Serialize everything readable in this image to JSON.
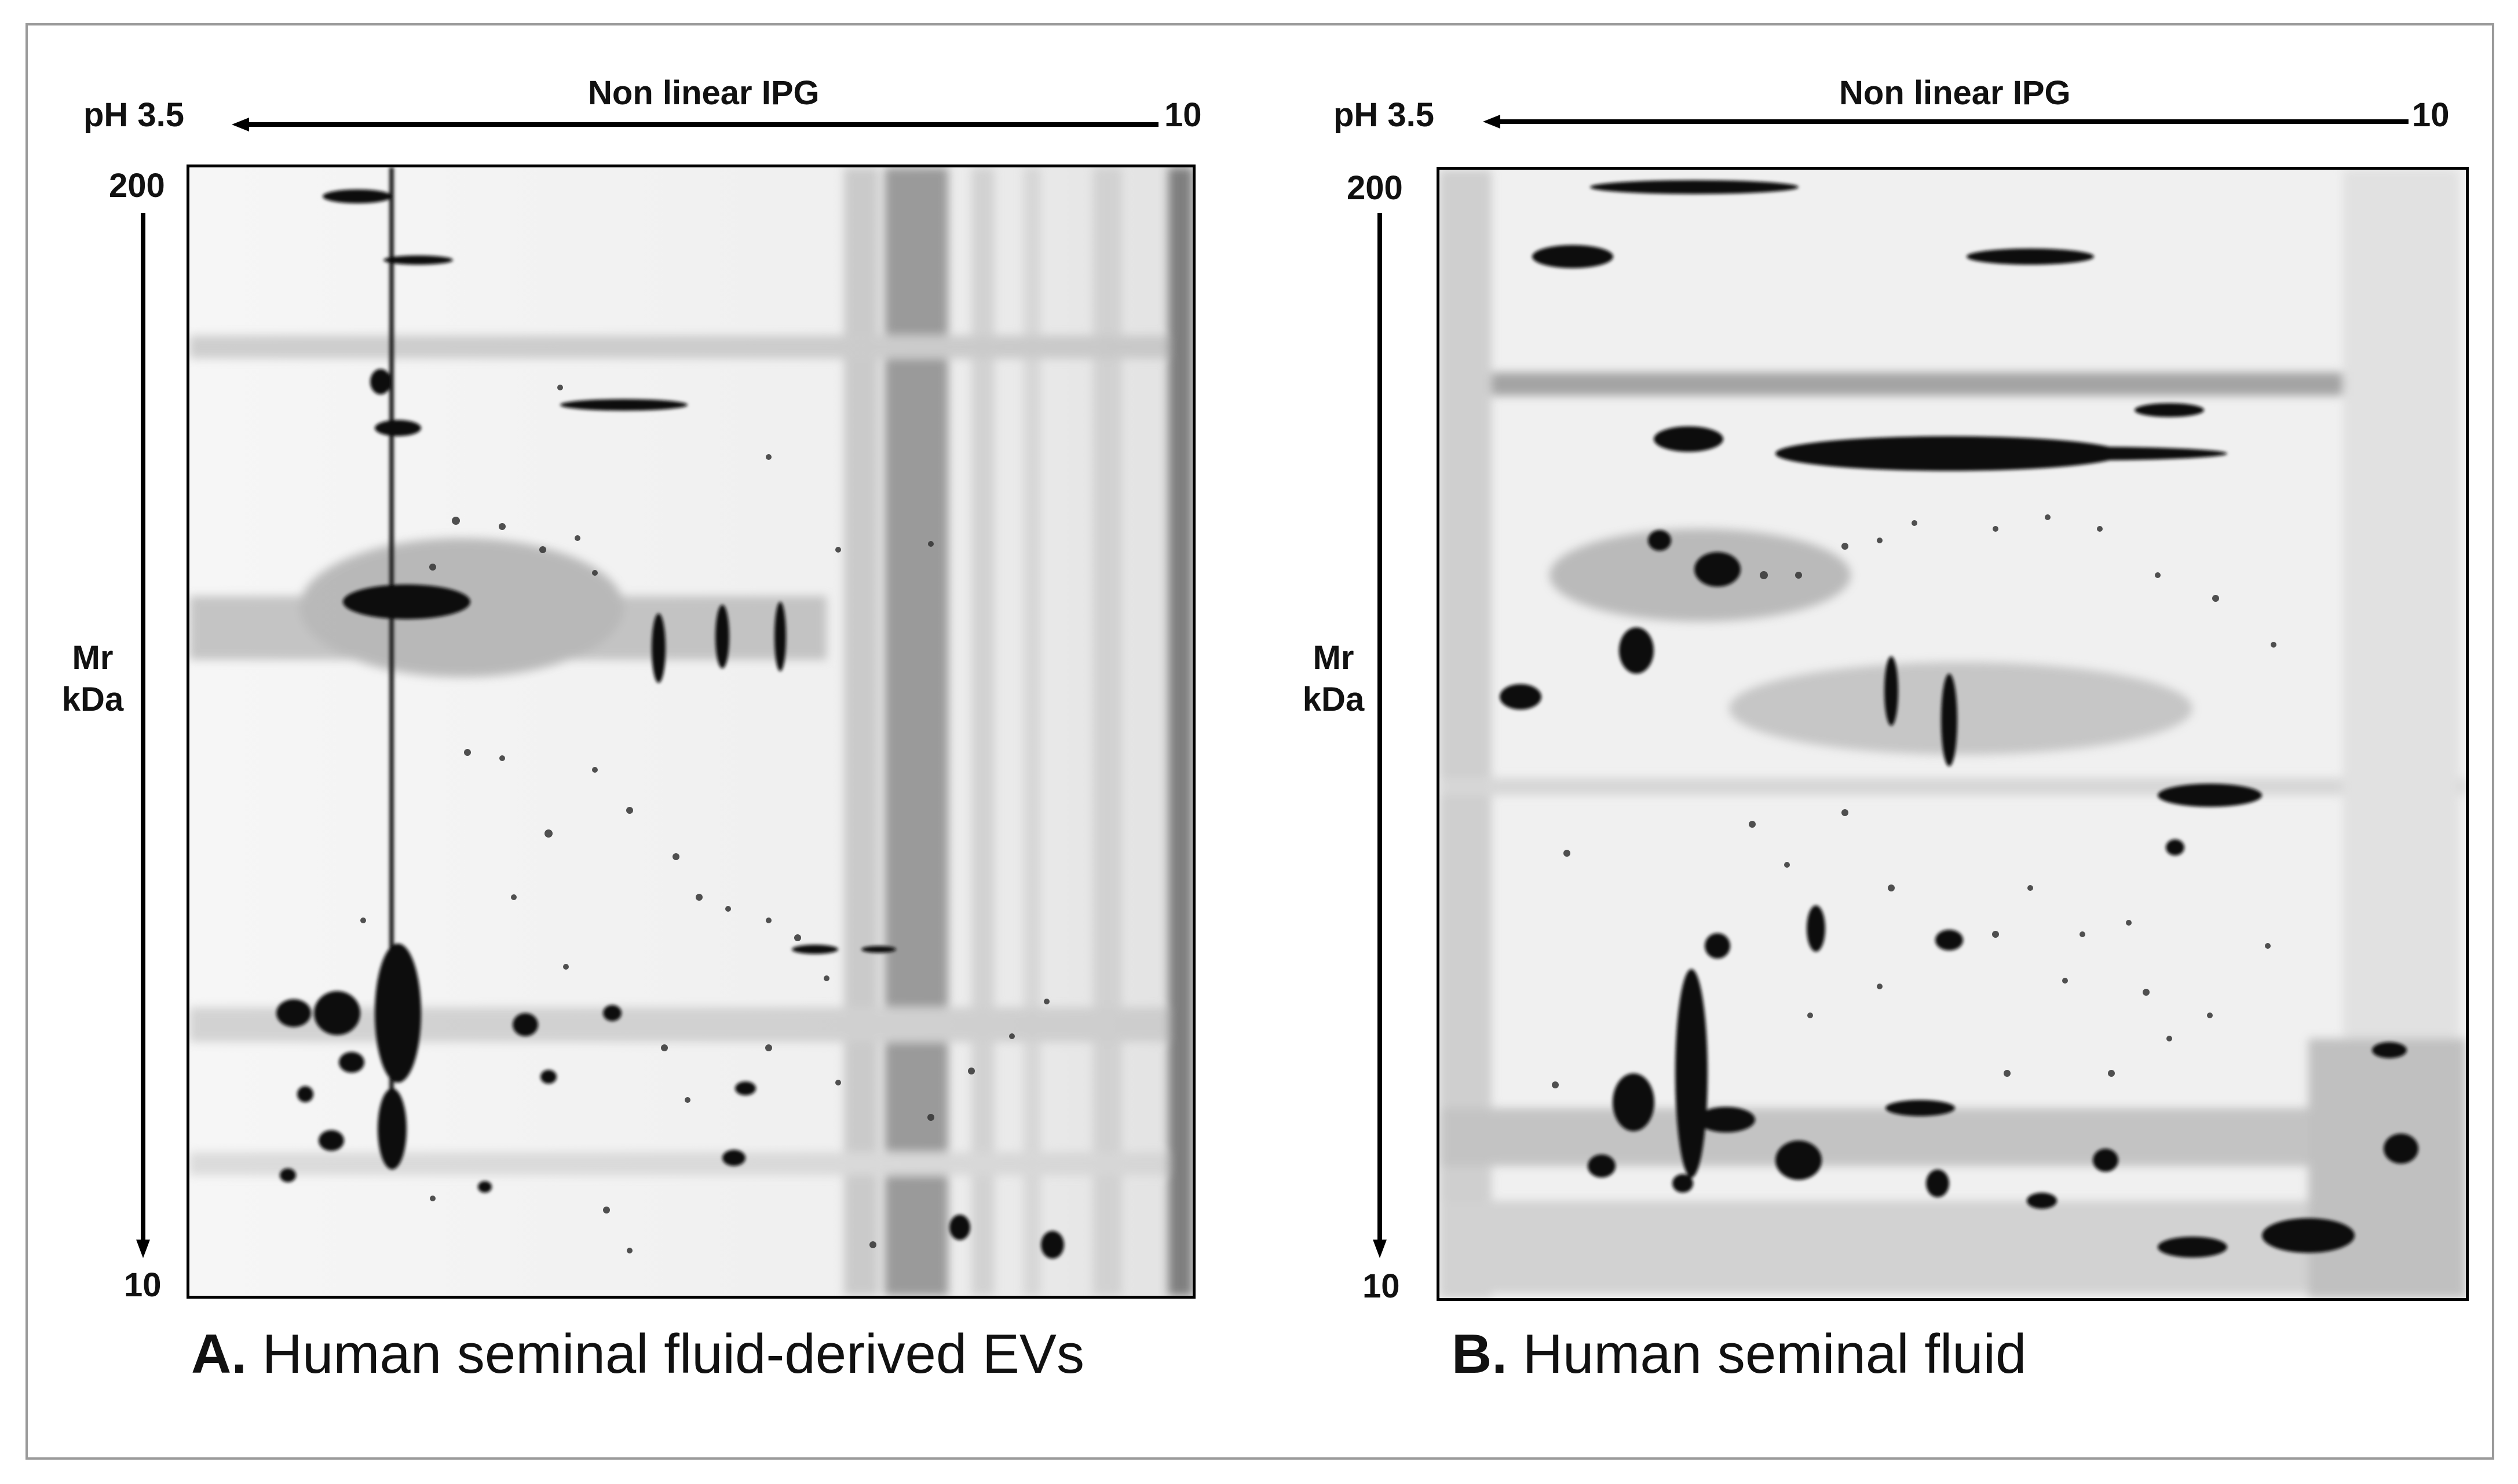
{
  "panels": [
    {
      "id": "A",
      "axis_top": "Non linear IPG",
      "ph_start": "pH 3.5",
      "ph_end": "10",
      "mr_top": "200",
      "mr_bottom": "10",
      "mr_label_1": "Mr",
      "mr_label_2": "kDa",
      "caption_letter": "A.",
      "caption_text": "Human seminal fluid-derived EVs"
    },
    {
      "id": "B",
      "axis_top": "Non linear IPG",
      "ph_start": "pH 3.5",
      "ph_end": "10",
      "mr_top": "200",
      "mr_bottom": "10",
      "mr_label_1": "Mr",
      "mr_label_2": "kDa",
      "caption_letter": "B.",
      "caption_text": "Human seminal fluid"
    }
  ],
  "colors": {
    "frame": "#9a9a9a",
    "ink": "#000000",
    "gel_background": "#f4f4f4"
  }
}
